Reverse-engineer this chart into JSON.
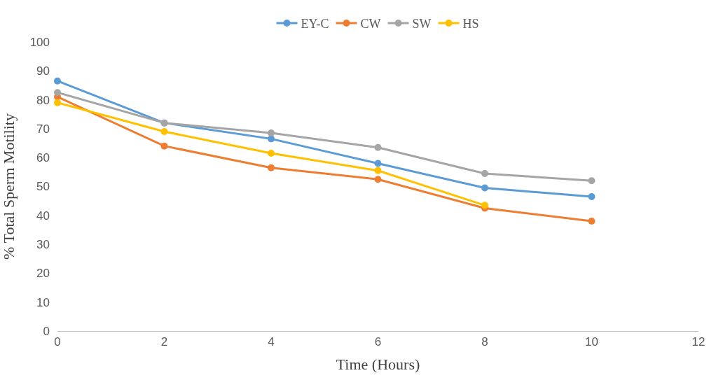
{
  "chart_data": {
    "type": "line",
    "xlabel": "Time (Hours)",
    "ylabel": "% Total Sperm Motility",
    "x": [
      0,
      2,
      4,
      6,
      8,
      10
    ],
    "series": [
      {
        "name": "EY-C",
        "color": "#5b9bd5",
        "values": [
          86.5,
          72,
          66.5,
          58,
          49.5,
          46.5
        ]
      },
      {
        "name": "CW",
        "color": "#ed7d31",
        "values": [
          81,
          64,
          56.5,
          52.5,
          42.5,
          38
        ]
      },
      {
        "name": "SW",
        "color": "#a5a5a5",
        "values": [
          82.5,
          72,
          68.5,
          63.5,
          54.5,
          52
        ]
      },
      {
        "name": "HS",
        "color": "#ffc000",
        "values": [
          79,
          69,
          61.5,
          55.5,
          43.5,
          null
        ]
      }
    ],
    "xlim": [
      0,
      12
    ],
    "xticks": [
      0,
      2,
      4,
      6,
      8,
      10,
      12
    ],
    "ylim": [
      0,
      100
    ],
    "yticks": [
      0,
      10,
      20,
      30,
      40,
      50,
      60,
      70,
      80,
      90,
      100
    ],
    "legend": "top",
    "marker": "circle",
    "line_style": "solid"
  }
}
